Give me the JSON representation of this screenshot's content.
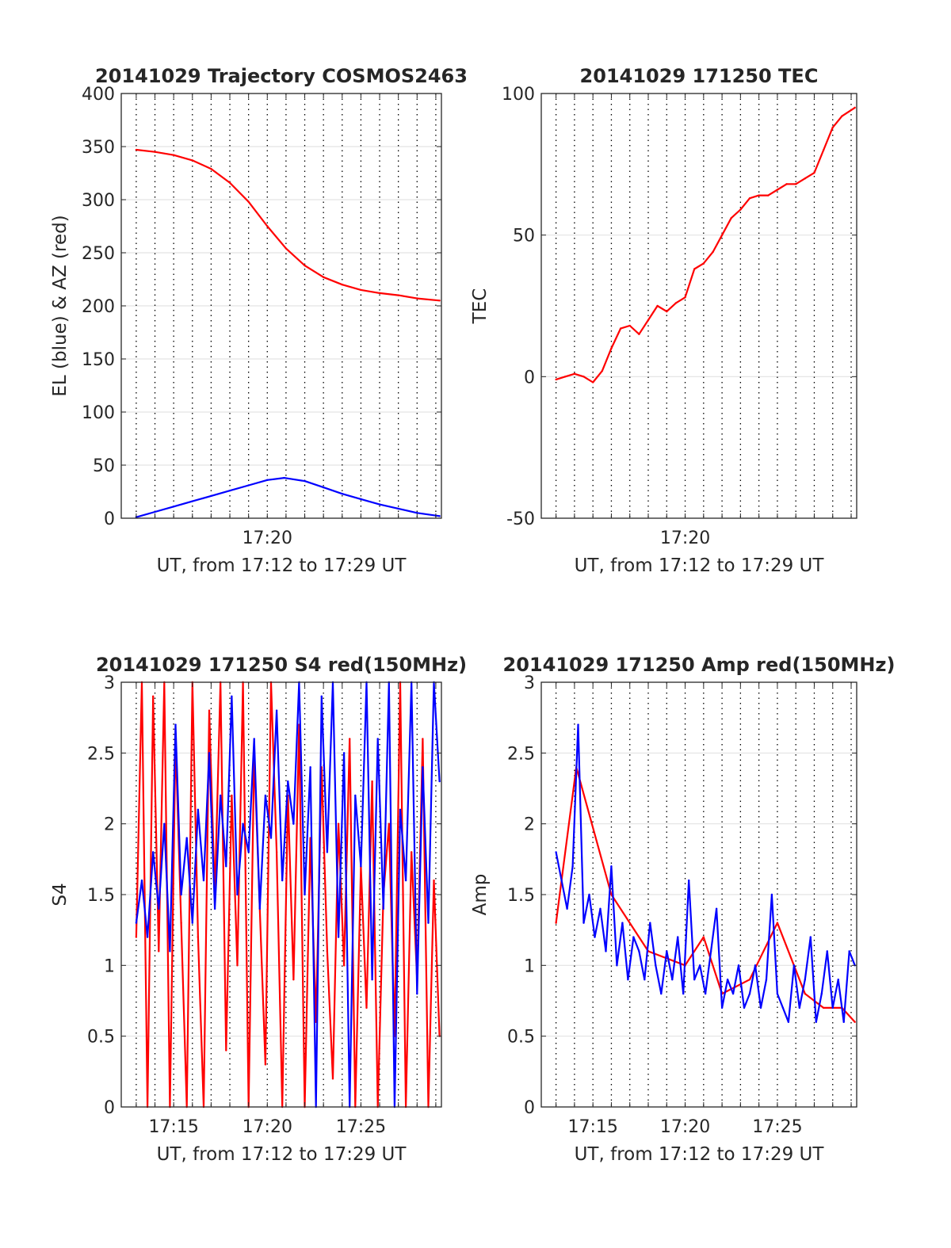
{
  "figure": {
    "background": "#ffffff"
  },
  "chart_data": [
    {
      "id": "traj",
      "type": "line",
      "title": "20141029 Trajectory COSMOS2463",
      "xlabel": "UT, from 17:12 to 17:29 UT",
      "ylabel": "EL (blue) & AZ (red)",
      "xlim": [
        12.2,
        29.3
      ],
      "ylim": [
        0,
        400
      ],
      "yticks": [
        0,
        50,
        100,
        150,
        200,
        250,
        300,
        350,
        400
      ],
      "xticks": [
        {
          "value": 20,
          "label": "17:20"
        }
      ],
      "grid": true,
      "series": [
        {
          "color": "#ff0000",
          "x": [
            13.0,
            14,
            15,
            16,
            17,
            18,
            19,
            20,
            21,
            22,
            23,
            24,
            25,
            26,
            27,
            28,
            29.2
          ],
          "y": [
            347,
            345,
            342,
            337,
            329,
            316,
            298,
            275,
            254,
            238,
            227,
            220,
            215,
            212,
            210,
            207,
            205
          ]
        },
        {
          "color": "#0000ff",
          "x": [
            13.0,
            14,
            15,
            16,
            17,
            18,
            19,
            20,
            20.9,
            22,
            23,
            24,
            25,
            26,
            27,
            28,
            29.2
          ],
          "y": [
            1,
            6,
            11,
            16,
            21,
            26,
            31,
            36,
            38,
            35,
            29,
            23,
            18,
            13,
            9,
            5,
            2
          ]
        }
      ]
    },
    {
      "id": "tec",
      "type": "line",
      "title": "20141029 171250 TEC",
      "xlabel": "UT, from 17:12 to 17:29 UT",
      "ylabel": "TEC",
      "xlim": [
        12.2,
        29.3
      ],
      "ylim": [
        -50,
        100
      ],
      "yticks": [
        -50,
        0,
        50,
        100
      ],
      "xticks": [
        {
          "value": 20,
          "label": "17:20"
        }
      ],
      "grid": true,
      "series": [
        {
          "color": "#ff0000",
          "x": [
            13.0,
            13.5,
            14.0,
            14.5,
            15.0,
            15.5,
            16.0,
            16.5,
            17.0,
            17.5,
            18.0,
            18.5,
            19.0,
            19.5,
            20.0,
            20.5,
            21.0,
            21.5,
            22.0,
            22.5,
            23.0,
            23.5,
            24.0,
            24.5,
            25.0,
            25.5,
            26.0,
            26.5,
            27.0,
            27.5,
            28.0,
            28.5,
            29.2
          ],
          "y": [
            -1,
            0,
            1,
            0,
            -2,
            2,
            10,
            17,
            18,
            15,
            20,
            25,
            23,
            26,
            28,
            38,
            40,
            44,
            50,
            56,
            59,
            63,
            64,
            64,
            66,
            68,
            68,
            70,
            72,
            80,
            88,
            92,
            95
          ]
        }
      ]
    },
    {
      "id": "s4",
      "type": "line",
      "title": "20141029 171250 S4 red(150MHz)",
      "xlabel": "UT, from 17:12 to 17:29 UT",
      "ylabel": "S4",
      "xlim": [
        12.2,
        29.3
      ],
      "ylim": [
        0,
        3
      ],
      "yticks": [
        0,
        0.5,
        1,
        1.5,
        2,
        2.5,
        3
      ],
      "xticks": [
        {
          "value": 15,
          "label": "17:15"
        },
        {
          "value": 20,
          "label": "17:20"
        },
        {
          "value": 25,
          "label": "17:25"
        }
      ],
      "grid": true,
      "series": [
        {
          "color": "#ff0000",
          "x": [
            13.0,
            13.3,
            13.6,
            13.9,
            14.2,
            14.5,
            14.8,
            15.1,
            15.4,
            15.7,
            16.0,
            16.3,
            16.6,
            16.9,
            17.2,
            17.5,
            17.8,
            18.1,
            18.4,
            18.7,
            19.0,
            19.3,
            19.6,
            19.9,
            20.2,
            20.5,
            20.8,
            21.1,
            21.4,
            21.7,
            22.0,
            22.3,
            22.6,
            22.9,
            23.2,
            23.5,
            23.8,
            24.1,
            24.4,
            24.7,
            25.0,
            25.3,
            25.6,
            25.9,
            26.2,
            26.5,
            26.8,
            27.1,
            27.4,
            27.7,
            28.0,
            28.3,
            28.6,
            28.9,
            29.2
          ],
          "y": [
            1.2,
            3.0,
            0.0,
            2.9,
            1.1,
            3.0,
            0.0,
            2.6,
            1.3,
            0.0,
            3.0,
            1.2,
            0.0,
            2.8,
            1.5,
            3.0,
            0.4,
            2.2,
            1.0,
            3.0,
            0.0,
            2.5,
            1.4,
            0.3,
            3.0,
            1.8,
            0.0,
            2.2,
            0.9,
            2.7,
            0.0,
            1.9,
            0.6,
            2.4,
            1.1,
            0.2,
            2.0,
            1.0,
            2.6,
            0.0,
            1.7,
            0.7,
            2.3,
            0.0,
            1.5,
            2.0,
            0.5,
            3.0,
            0.0,
            1.8,
            0.9,
            2.6,
            0.0,
            1.6,
            0.5
          ]
        },
        {
          "color": "#0000ff",
          "x": [
            13.0,
            13.3,
            13.6,
            13.9,
            14.2,
            14.5,
            14.8,
            15.1,
            15.4,
            15.7,
            16.0,
            16.3,
            16.6,
            16.9,
            17.2,
            17.5,
            17.8,
            18.1,
            18.4,
            18.7,
            19.0,
            19.3,
            19.6,
            19.9,
            20.2,
            20.5,
            20.8,
            21.1,
            21.4,
            21.7,
            22.0,
            22.3,
            22.6,
            22.9,
            23.2,
            23.5,
            23.8,
            24.1,
            24.4,
            24.7,
            25.0,
            25.3,
            25.6,
            25.9,
            26.2,
            26.5,
            26.8,
            27.1,
            27.4,
            27.7,
            28.0,
            28.3,
            28.6,
            28.9,
            29.2
          ],
          "y": [
            1.3,
            1.6,
            1.2,
            1.8,
            1.4,
            2.0,
            1.1,
            2.7,
            1.5,
            1.9,
            1.3,
            2.1,
            1.6,
            2.5,
            1.4,
            2.2,
            1.7,
            2.9,
            1.5,
            2.0,
            1.8,
            2.6,
            1.4,
            2.2,
            1.9,
            2.8,
            1.6,
            2.3,
            2.0,
            3.0,
            1.5,
            2.4,
            0.0,
            2.9,
            1.8,
            3.0,
            1.2,
            2.5,
            0.0,
            2.2,
            1.7,
            3.0,
            0.9,
            2.6,
            1.4,
            3.0,
            0.0,
            2.1,
            1.6,
            3.0,
            0.8,
            2.4,
            1.3,
            3.0,
            2.3
          ]
        }
      ]
    },
    {
      "id": "amp",
      "type": "line",
      "title": "20141029 171250 Amp red(150MHz)",
      "xlabel": "UT, from 17:12 to 17:29 UT",
      "ylabel": "Amp",
      "xlim": [
        12.2,
        29.3
      ],
      "ylim": [
        0,
        3
      ],
      "yticks": [
        0,
        0.5,
        1,
        1.5,
        2,
        2.5,
        3
      ],
      "xticks": [
        {
          "value": 15,
          "label": "17:15"
        },
        {
          "value": 20,
          "label": "17:20"
        },
        {
          "value": 25,
          "label": "17:25"
        }
      ],
      "grid": true,
      "series": [
        {
          "color": "#ff0000",
          "x": [
            13.0,
            14.1,
            16.0,
            18.0,
            20.0,
            21.0,
            22.0,
            23.5,
            25.0,
            26.5,
            27.5,
            28.5,
            29.2
          ],
          "y": [
            1.3,
            2.4,
            1.5,
            1.1,
            1.0,
            1.2,
            0.8,
            0.9,
            1.3,
            0.8,
            0.7,
            0.7,
            0.6
          ]
        },
        {
          "color": "#0000ff",
          "x": [
            13.0,
            13.3,
            13.6,
            13.9,
            14.2,
            14.5,
            14.8,
            15.1,
            15.4,
            15.7,
            16.0,
            16.3,
            16.6,
            16.9,
            17.2,
            17.5,
            17.8,
            18.1,
            18.4,
            18.7,
            19.0,
            19.3,
            19.6,
            19.9,
            20.2,
            20.5,
            20.8,
            21.1,
            21.4,
            21.7,
            22.0,
            22.3,
            22.6,
            22.9,
            23.2,
            23.5,
            23.8,
            24.1,
            24.4,
            24.7,
            25.0,
            25.3,
            25.6,
            25.9,
            26.2,
            26.5,
            26.8,
            27.1,
            27.4,
            27.7,
            28.0,
            28.3,
            28.6,
            28.9,
            29.2
          ],
          "y": [
            1.8,
            1.6,
            1.4,
            1.7,
            2.7,
            1.3,
            1.5,
            1.2,
            1.4,
            1.1,
            1.7,
            1.0,
            1.3,
            0.9,
            1.2,
            1.1,
            0.9,
            1.3,
            1.0,
            0.8,
            1.1,
            0.9,
            1.2,
            0.8,
            1.6,
            0.9,
            1.0,
            0.8,
            1.1,
            1.4,
            0.7,
            0.9,
            0.8,
            1.0,
            0.7,
            0.8,
            1.0,
            0.7,
            0.9,
            1.5,
            0.8,
            0.7,
            0.6,
            1.0,
            0.7,
            0.9,
            1.2,
            0.6,
            0.8,
            1.1,
            0.7,
            0.9,
            0.6,
            1.1,
            1.0
          ]
        }
      ]
    }
  ]
}
